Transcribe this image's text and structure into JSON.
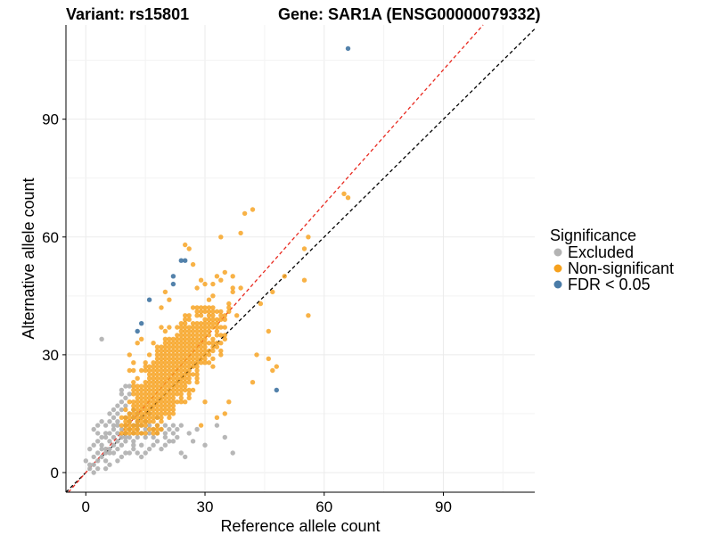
{
  "header": {
    "variant_text": "Variant: rs15801",
    "gene_text": "Gene: SAR1A (ENSG00000079332)"
  },
  "legend": {
    "title": "Significance",
    "items": [
      {
        "label": "Excluded",
        "color": "#b3b3b3"
      },
      {
        "label": "Non-significant",
        "color": "#f6a11d"
      },
      {
        "label": "FDR < 0.05",
        "color": "#4a7ba7"
      }
    ]
  },
  "chart_data": {
    "type": "scatter",
    "title": "Variant: rs15801    Gene: SAR1A (ENSG00000079332)",
    "xlabel": "Reference allele count",
    "ylabel": "Alternative allele count",
    "xlim": [
      -5,
      113
    ],
    "ylim": [
      -5,
      114
    ],
    "xticks": [
      0,
      30,
      60,
      90
    ],
    "yticks": [
      0,
      30,
      60,
      90
    ],
    "grid": true,
    "legend_position": "right",
    "reference_lines": [
      {
        "name": "y = x",
        "slope": 1.0,
        "intercept": 0,
        "color": "#000000",
        "style": "dashed"
      },
      {
        "name": "fitted",
        "slope": 1.14,
        "intercept": 0,
        "color": "#e8281e",
        "style": "dashed"
      }
    ],
    "series": [
      {
        "name": "Excluded",
        "color": "#b3b3b3",
        "points": [
          [
            1,
            1
          ],
          [
            2,
            2
          ],
          [
            2,
            4
          ],
          [
            3,
            3
          ],
          [
            3,
            5
          ],
          [
            4,
            4
          ],
          [
            4,
            6
          ],
          [
            5,
            5
          ],
          [
            5,
            3
          ],
          [
            6,
            6
          ],
          [
            6,
            8
          ],
          [
            7,
            7
          ],
          [
            7,
            5
          ],
          [
            8,
            8
          ],
          [
            8,
            6
          ],
          [
            8,
            10
          ],
          [
            9,
            9
          ],
          [
            9,
            7
          ],
          [
            10,
            10
          ],
          [
            10,
            8
          ],
          [
            10,
            12
          ],
          [
            11,
            11
          ],
          [
            11,
            9
          ],
          [
            12,
            12
          ],
          [
            12,
            10
          ],
          [
            12,
            8
          ],
          [
            13,
            13
          ],
          [
            13,
            11
          ],
          [
            14,
            12
          ],
          [
            14,
            10
          ],
          [
            15,
            11
          ],
          [
            15,
            9
          ],
          [
            16,
            12
          ],
          [
            16,
            10
          ],
          [
            17,
            11
          ],
          [
            17,
            9
          ],
          [
            18,
            12
          ],
          [
            18,
            10
          ],
          [
            19,
            11
          ],
          [
            20,
            12
          ],
          [
            20,
            10
          ],
          [
            21,
            11
          ],
          [
            22,
            12
          ],
          [
            22,
            10
          ],
          [
            23,
            11
          ],
          [
            24,
            12
          ],
          [
            3,
            8
          ],
          [
            4,
            9
          ],
          [
            5,
            10
          ],
          [
            5,
            12
          ],
          [
            6,
            13
          ],
          [
            7,
            14
          ],
          [
            8,
            15
          ],
          [
            9,
            16
          ],
          [
            9,
            18
          ],
          [
            10,
            17
          ],
          [
            10,
            19
          ],
          [
            11,
            20
          ],
          [
            8,
            13
          ],
          [
            7,
            11
          ],
          [
            6,
            10
          ],
          [
            5,
            9
          ],
          [
            4,
            7
          ],
          [
            2,
            7
          ],
          [
            3,
            10
          ],
          [
            4,
            13
          ],
          [
            6,
            15
          ],
          [
            7,
            16
          ],
          [
            7,
            12
          ],
          [
            8,
            12
          ],
          [
            8,
            17
          ],
          [
            9,
            21
          ],
          [
            9,
            20
          ],
          [
            10,
            22
          ],
          [
            11,
            22
          ],
          [
            12,
            6
          ],
          [
            13,
            5
          ],
          [
            14,
            7
          ],
          [
            15,
            5
          ],
          [
            16,
            6
          ],
          [
            17,
            7
          ],
          [
            19,
            6
          ],
          [
            20,
            7
          ],
          [
            21,
            8
          ],
          [
            22,
            8
          ],
          [
            24,
            5
          ],
          [
            25,
            4
          ],
          [
            27,
            8
          ],
          [
            30,
            7
          ],
          [
            35,
            9
          ],
          [
            37,
            5
          ],
          [
            33,
            12
          ],
          [
            5,
            6
          ],
          [
            6,
            5
          ],
          [
            7,
            9
          ],
          [
            9,
            11
          ],
          [
            10,
            14
          ],
          [
            11,
            15
          ],
          [
            12,
            16
          ],
          [
            4,
            34
          ],
          [
            13,
            12
          ],
          [
            3,
            12
          ],
          [
            2,
            11
          ],
          [
            1,
            6
          ],
          [
            0,
            3
          ],
          [
            1,
            2
          ],
          [
            2,
            0
          ],
          [
            3,
            1
          ],
          [
            5,
            1
          ],
          [
            6,
            2
          ],
          [
            8,
            3
          ],
          [
            11,
            5
          ],
          [
            14,
            4
          ],
          [
            9,
            4
          ],
          [
            10,
            5
          ],
          [
            12,
            7
          ],
          [
            13,
            9
          ],
          [
            15,
            13
          ],
          [
            14,
            14
          ],
          [
            16,
            15
          ],
          [
            18,
            14
          ],
          [
            18,
            8
          ],
          [
            20,
            9
          ],
          [
            23,
            9
          ],
          [
            26,
            10
          ],
          [
            28,
            11
          ],
          [
            10,
            9
          ],
          [
            11,
            13
          ],
          [
            12,
            14
          ],
          [
            13,
            15
          ]
        ]
      },
      {
        "name": "Non-significant",
        "color": "#f6a11d",
        "points": []
      },
      {
        "name": "FDR < 0.05",
        "color": "#4a7ba7",
        "points": [
          [
            66,
            108
          ],
          [
            13,
            36
          ],
          [
            14,
            38
          ],
          [
            16,
            44
          ],
          [
            22,
            48
          ],
          [
            22,
            50
          ],
          [
            24,
            54
          ],
          [
            25,
            54
          ],
          [
            48,
            21
          ]
        ]
      }
    ]
  }
}
